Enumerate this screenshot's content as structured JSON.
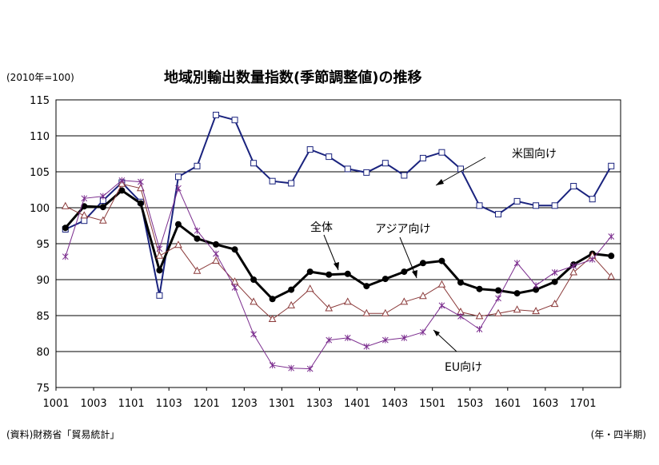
{
  "chart_data": {
    "type": "line",
    "title": "地域別輸出数量指数(季節調整値)の推移",
    "unit_note": "(2010年=100)",
    "source": "(資料)財務省「貿易統計」",
    "period_note": "(年・四半期)",
    "ylim": [
      75,
      115
    ],
    "yticks": [
      75,
      80,
      85,
      90,
      95,
      100,
      105,
      110,
      115
    ],
    "grid": true,
    "x": [
      "1001",
      "1002",
      "1003",
      "1004",
      "1101",
      "1102",
      "1103",
      "1104",
      "1201",
      "1202",
      "1203",
      "1204",
      "1301",
      "1302",
      "1303",
      "1304",
      "1401",
      "1402",
      "1403",
      "1404",
      "1501",
      "1502",
      "1503",
      "1504",
      "1601",
      "1602",
      "1603",
      "1604",
      "1701",
      "1702"
    ],
    "xtick_labels": [
      "1001",
      "1003",
      "1101",
      "1103",
      "1201",
      "1203",
      "1301",
      "1303",
      "1401",
      "1403",
      "1501",
      "1503",
      "1601",
      "1603",
      "1701"
    ],
    "series": [
      {
        "name": "米国向け",
        "color": "#1a237e",
        "marker": "square",
        "values": [
          97.0,
          98.2,
          101.0,
          103.5,
          100.8,
          87.8,
          104.3,
          105.8,
          112.9,
          112.2,
          106.2,
          103.7,
          103.4,
          108.1,
          107.1,
          105.4,
          104.9,
          106.2,
          104.5,
          106.9,
          107.7,
          105.4,
          100.3,
          99.1,
          100.9,
          100.3,
          100.3,
          103.0,
          101.2,
          105.8
        ]
      },
      {
        "name": "全体",
        "color": "#000000",
        "marker": "dot",
        "values": [
          97.2,
          100.2,
          100.1,
          102.4,
          100.6,
          91.3,
          97.7,
          95.7,
          94.9,
          94.2,
          90.0,
          87.3,
          88.6,
          91.1,
          90.7,
          90.8,
          89.1,
          90.1,
          91.1,
          92.3,
          92.6,
          89.6,
          88.7,
          88.5,
          88.1,
          88.6,
          89.7,
          92.1,
          93.6,
          93.3
        ]
      },
      {
        "name": "アジア向け",
        "color": "#8b3a3a",
        "marker": "triangle",
        "values": [
          100.2,
          98.9,
          98.2,
          103.3,
          102.7,
          93.3,
          94.8,
          91.2,
          92.6,
          89.7,
          86.9,
          84.5,
          86.4,
          88.7,
          86.0,
          86.9,
          85.3,
          85.3,
          86.9,
          87.7,
          89.3,
          85.5,
          84.9,
          85.3,
          85.8,
          85.6,
          86.6,
          91.0,
          93.3,
          90.4
        ]
      },
      {
        "name": "EU向け",
        "color": "#7b2d8e",
        "marker": "star",
        "values": [
          93.2,
          101.3,
          101.6,
          103.8,
          103.6,
          94.3,
          102.7,
          96.8,
          93.6,
          88.9,
          82.4,
          78.1,
          77.7,
          77.6,
          81.6,
          81.9,
          80.7,
          81.6,
          81.9,
          82.7,
          86.4,
          84.9,
          83.1,
          87.4,
          92.3,
          89.2,
          91.0,
          91.9,
          92.8,
          96.0
        ]
      }
    ],
    "annotations": [
      "米国向け",
      "全体",
      "アジア向け",
      "EU向け"
    ]
  }
}
